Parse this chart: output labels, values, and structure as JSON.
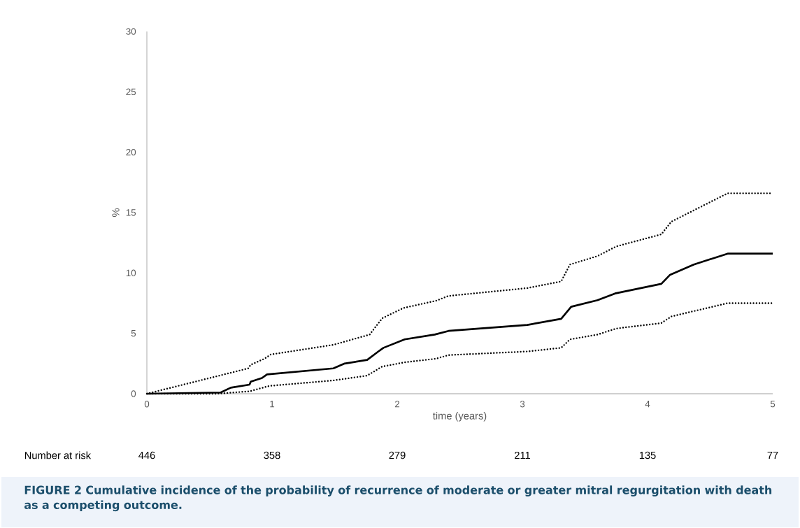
{
  "chart_data": {
    "type": "line",
    "xlabel": "time (years)",
    "ylabel": "%",
    "xlim": [
      0,
      5
    ],
    "ylim": [
      0,
      30
    ],
    "xticks": [
      0,
      1,
      2,
      3,
      4,
      5
    ],
    "yticks": [
      0,
      5,
      10,
      15,
      20,
      25,
      30
    ],
    "grid": false,
    "marker": "none",
    "series": [
      {
        "color": "#000000",
        "line_style": "solid",
        "x": [
          0,
          0.59,
          0.67,
          0.82,
          0.83,
          0.92,
          0.96,
          1.49,
          1.58,
          1.76,
          1.85,
          1.89,
          2.06,
          2.3,
          2.41,
          3.04,
          3.31,
          3.39,
          3.6,
          3.74,
          4.11,
          4.18,
          4.37,
          4.64,
          5.0
        ],
        "values": [
          0,
          0.1,
          0.5,
          0.75,
          1.0,
          1.3,
          1.6,
          2.1,
          2.5,
          2.8,
          3.5,
          3.8,
          4.5,
          4.9,
          5.2,
          5.7,
          6.2,
          7.2,
          7.75,
          8.3,
          9.1,
          9.85,
          10.7,
          11.6,
          11.6
        ]
      },
      {
        "color": "#000000",
        "line_style": "dotted",
        "x": [
          0,
          0.56,
          0.81,
          0.83,
          0.94,
          0.99,
          1.49,
          1.78,
          1.88,
          2.05,
          2.31,
          2.41,
          3.04,
          3.31,
          3.38,
          3.6,
          3.75,
          4.11,
          4.19,
          4.64,
          5.0
        ],
        "values": [
          0,
          1.45,
          2.1,
          2.4,
          2.9,
          3.25,
          4.05,
          4.9,
          6.25,
          7.1,
          7.7,
          8.1,
          8.75,
          9.3,
          10.7,
          11.4,
          12.2,
          13.2,
          14.25,
          16.6,
          16.6
        ]
      },
      {
        "color": "#000000",
        "line_style": "dotted",
        "x": [
          0,
          0.56,
          0.82,
          0.98,
          1.49,
          1.76,
          1.88,
          2.06,
          2.31,
          2.41,
          3.04,
          3.31,
          3.38,
          3.6,
          3.75,
          4.11,
          4.19,
          4.64,
          5.0
        ],
        "values": [
          0,
          0,
          0.2,
          0.65,
          1.1,
          1.5,
          2.25,
          2.6,
          2.9,
          3.2,
          3.5,
          3.8,
          4.5,
          4.9,
          5.4,
          5.85,
          6.4,
          7.5,
          7.5
        ]
      }
    ],
    "annotations": [
      "Number at risk",
      "446",
      "358",
      "279",
      "211",
      "135",
      "77",
      "FIGURE 2  Cumulative incidence of the probability of recurrence of moderate or greater mitral regurgitation with death as a competing outcome."
    ]
  }
}
